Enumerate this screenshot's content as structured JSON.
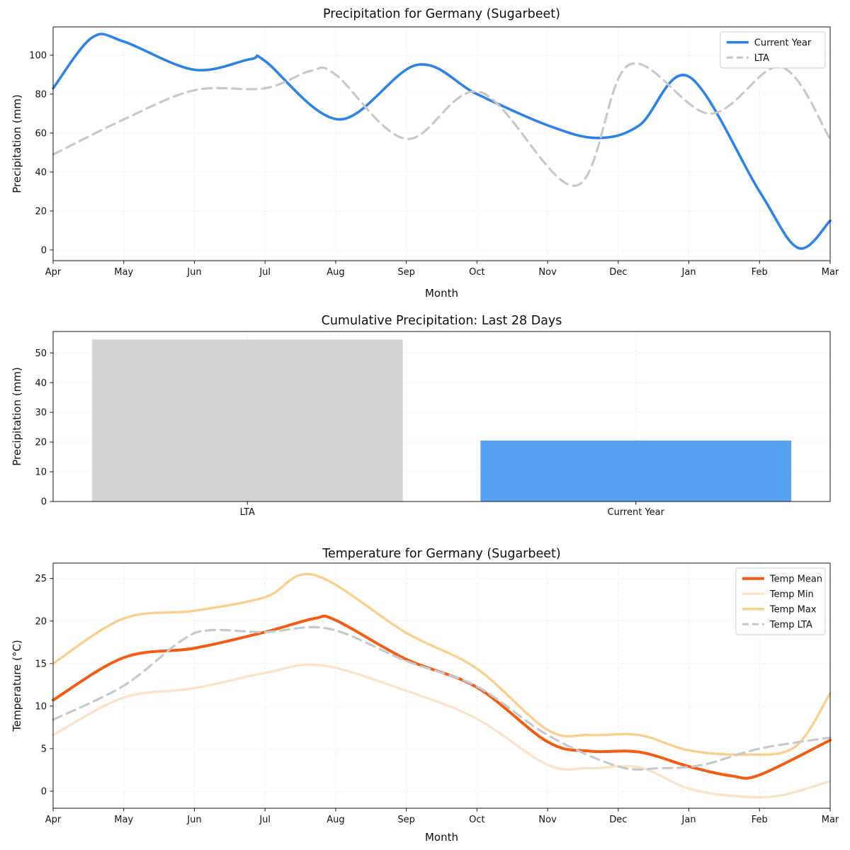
{
  "chart_data": [
    {
      "id": "precip_line",
      "type": "line",
      "title": "Precipitation for Germany (Sugarbeet)",
      "xlabel": "Month",
      "ylabel": "Precipitation (mm)",
      "x_ticks": [
        "Apr",
        "May",
        "Jun",
        "Jul",
        "Aug",
        "Sep",
        "Oct",
        "Nov",
        "Dec",
        "Jan",
        "Feb",
        "Mar"
      ],
      "y_ticks": [
        0,
        20,
        40,
        60,
        80,
        100
      ],
      "xlim": [
        0,
        11
      ],
      "ylim": [
        -5.5,
        114.5
      ],
      "grid": true,
      "legend_position": "top-right",
      "series": [
        {
          "name": "Current Year",
          "color": "#2e82e6",
          "dash": false,
          "width": 3.6,
          "x": [
            0,
            0.55,
            1,
            2,
            2.8,
            3,
            4.05,
            5.15,
            6,
            7,
            7.7,
            8.3,
            9,
            10,
            10.55,
            11
          ],
          "y": [
            83,
            109,
            107,
            92.5,
            98,
            97,
            67,
            95,
            80,
            64,
            57.5,
            64,
            89,
            30,
            1,
            15
          ]
        },
        {
          "name": "LTA",
          "color": "#c8c8c8",
          "dash": true,
          "width": 3.2,
          "x": [
            0,
            1,
            2,
            3,
            3.65,
            4,
            5,
            6.05,
            7.4,
            8.15,
            9.3,
            10.3,
            11
          ],
          "y": [
            49,
            67,
            82,
            83,
            92,
            90,
            57,
            81,
            33,
            95,
            70,
            94,
            57
          ]
        }
      ]
    },
    {
      "id": "precip_bar",
      "type": "bar",
      "title": "Cumulative Precipitation: Last 28 Days",
      "ylabel": "Precipitation (mm)",
      "categories": [
        "LTA",
        "Current Year"
      ],
      "values": [
        54.5,
        20.5
      ],
      "bar_colors": [
        "#d3d3d3",
        "#5aa1f2"
      ],
      "y_ticks": [
        0,
        10,
        20,
        30,
        40,
        50
      ],
      "ylim": [
        0,
        57.2
      ],
      "grid": true
    },
    {
      "id": "temp_line",
      "type": "line",
      "title": "Temperature for Germany (Sugarbeet)",
      "xlabel": "Month",
      "ylabel": "Temperature (°C)",
      "x_ticks": [
        "Apr",
        "May",
        "Jun",
        "Jul",
        "Aug",
        "Sep",
        "Oct",
        "Nov",
        "Dec",
        "Jan",
        "Feb",
        "Mar"
      ],
      "y_ticks": [
        0,
        5,
        10,
        15,
        20,
        25
      ],
      "xlim": [
        0,
        11
      ],
      "ylim": [
        -2.0,
        26.8
      ],
      "grid": true,
      "legend_position": "top-right",
      "series": [
        {
          "name": "Temp Mean",
          "color": "#f25c13",
          "dash": false,
          "width": 4,
          "x": [
            0,
            1,
            2,
            3,
            3.7,
            4,
            5,
            6,
            7,
            7.6,
            8.3,
            9,
            9.6,
            10,
            11
          ],
          "y": [
            10.7,
            15.7,
            16.8,
            18.7,
            20.3,
            20.1,
            15.5,
            12.2,
            5.8,
            4.7,
            4.6,
            2.9,
            1.8,
            1.9,
            6.0
          ]
        },
        {
          "name": "Temp Min",
          "color": "#fbe3c9",
          "dash": false,
          "width": 3.4,
          "x": [
            0,
            1,
            2,
            3,
            3.8,
            5,
            6,
            7,
            7.6,
            8.3,
            9,
            9.7,
            10.3,
            11
          ],
          "y": [
            6.6,
            11.0,
            12.1,
            13.9,
            14.8,
            11.8,
            8.5,
            3.1,
            2.7,
            2.8,
            0.3,
            -0.6,
            -0.5,
            1.2
          ]
        },
        {
          "name": "Temp Max",
          "color": "#f9cf8f",
          "dash": false,
          "width": 3.4,
          "x": [
            0,
            1,
            2,
            3,
            3.7,
            5,
            6,
            7,
            7.6,
            8.3,
            9,
            9.8,
            10.5,
            11
          ],
          "y": [
            15.0,
            20.3,
            21.2,
            22.8,
            25.4,
            18.6,
            14.4,
            7.2,
            6.6,
            6.6,
            4.8,
            4.3,
            5.2,
            11.5
          ]
        },
        {
          "name": "Temp LTA",
          "color": "#c4c9cc",
          "dash": true,
          "width": 3.2,
          "x": [
            0,
            1,
            1.8,
            2.2,
            3,
            3.9,
            5,
            6,
            7,
            8,
            8.6,
            9.2,
            10,
            11
          ],
          "y": [
            8.4,
            12.4,
            17.6,
            18.9,
            18.7,
            19.1,
            15.3,
            12.3,
            6.6,
            2.9,
            2.7,
            3.1,
            5.0,
            6.3
          ]
        }
      ]
    }
  ]
}
